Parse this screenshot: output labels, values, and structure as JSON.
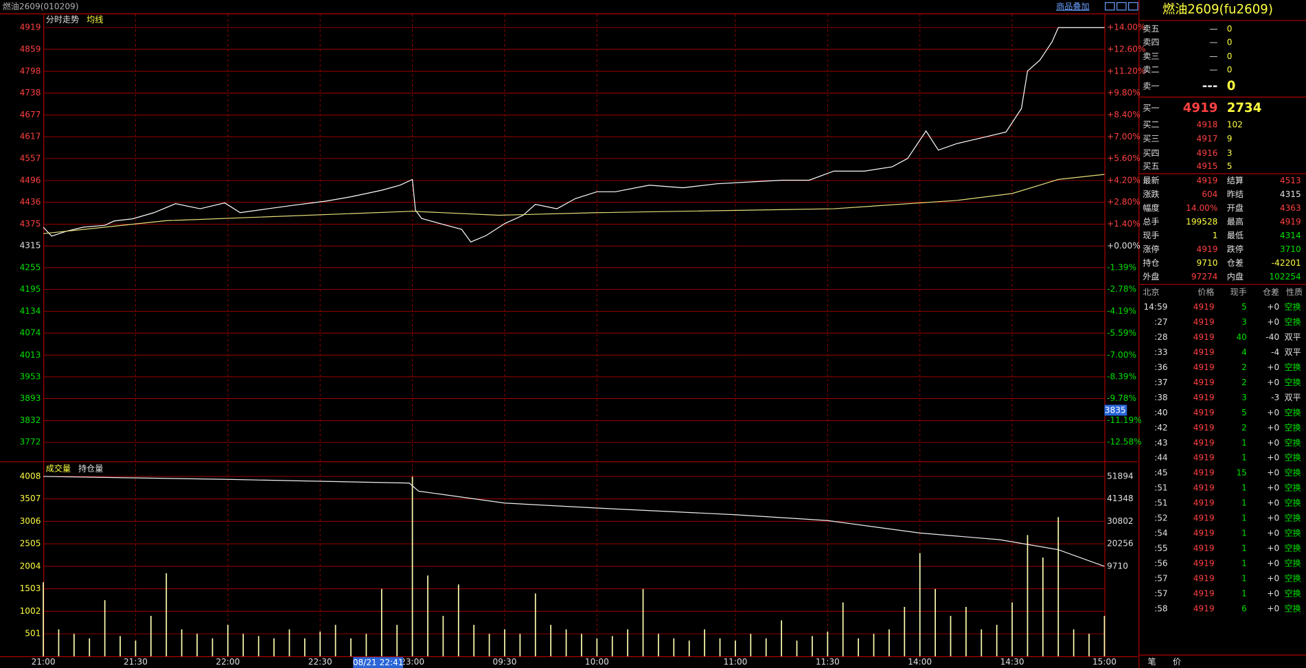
{
  "header": {
    "title": "燃油2609(010209)",
    "overlay": "商品叠加"
  },
  "chart_data": [
    {
      "type": "line",
      "title": "分时走势",
      "cursor_label": "3835",
      "xlim": [
        0,
        345
      ],
      "ylim": [
        3719,
        4956
      ],
      "y2lim": [
        -13.81,
        14.86
      ],
      "yticks": [
        4919,
        4859,
        4798,
        4738,
        4677,
        4617,
        4557,
        4496,
        4436,
        4375,
        4315,
        4255,
        4195,
        4134,
        4074,
        4013,
        3953,
        3893,
        3832,
        3772
      ],
      "y2ticks": [
        {
          "value": 14,
          "label": "+14.00%"
        },
        {
          "value": 12.6,
          "label": "+12.60%"
        },
        {
          "value": 11.2,
          "label": "+11.20%"
        },
        {
          "value": 9.8,
          "label": "+9.80%"
        },
        {
          "value": 8.4,
          "label": "+8.40%"
        },
        {
          "value": 7,
          "label": "+7.00%"
        },
        {
          "value": 5.6,
          "label": "+5.60%"
        },
        {
          "value": 4.2,
          "label": "+4.20%"
        },
        {
          "value": 2.8,
          "label": "+2.80%"
        },
        {
          "value": 1.4,
          "label": "+1.40%"
        },
        {
          "value": 0,
          "label": "+0.00%"
        },
        {
          "value": -1.39,
          "label": "-1.39%"
        },
        {
          "value": -2.78,
          "label": "-2.78%"
        },
        {
          "value": -4.19,
          "label": "-4.19%"
        },
        {
          "value": -5.59,
          "label": "-5.59%"
        },
        {
          "value": -7,
          "label": "-7.00%"
        },
        {
          "value": -8.39,
          "label": "-8.39%"
        },
        {
          "value": -9.78,
          "label": "-9.78%"
        },
        {
          "value": -11.19,
          "label": "-11.19%"
        },
        {
          "value": -12.58,
          "label": "-12.58%"
        }
      ],
      "series": [
        {
          "color": "#ffffff",
          "x": [
            0,
            2.7,
            7.6,
            13,
            20,
            23,
            29,
            36,
            43,
            51,
            59,
            64,
            73,
            81,
            92,
            100,
            110,
            116,
            120,
            121,
            123,
            129,
            136,
            139,
            144,
            150,
            156,
            160,
            167,
            173,
            180,
            186,
            197,
            208,
            219,
            230,
            240,
            249,
            257,
            267,
            276,
            281,
            287,
            291,
            297,
            305,
            313,
            318,
            320,
            324,
            328,
            330,
            345
          ],
          "values": [
            4367,
            4342,
            4356,
            4367,
            4372,
            4384,
            4390,
            4407,
            4432,
            4418,
            4434,
            4407,
            4418,
            4427,
            4439,
            4451,
            4469,
            4483,
            4499,
            4414,
            4391,
            4377,
            4361,
            4326,
            4344,
            4377,
            4400,
            4430,
            4418,
            4446,
            4465,
            4465,
            4483,
            4476,
            4487,
            4492,
            4497,
            4497,
            4522,
            4522,
            4534,
            4557,
            4633,
            4580,
            4598,
            4614,
            4630,
            4695,
            4799,
            4829,
            4880,
            4919,
            4919
          ]
        },
        {
          "name": "均线",
          "color": "#e8e07a",
          "x": [
            0,
            40,
            120,
            148,
            180,
            257,
            297,
            315,
            330,
            345
          ],
          "values": [
            4349,
            4385,
            4411,
            4400,
            4407,
            4418,
            4441,
            4460,
            4499,
            4513
          ]
        }
      ]
    },
    {
      "type": "bar",
      "cursor_time": "08/21 22:41",
      "xlim": [
        0,
        345
      ],
      "ylim": [
        0,
        4285
      ],
      "y2lim": [
        -32474,
        57753
      ],
      "xticks": [
        {
          "value": 0,
          "label": "21:00"
        },
        {
          "value": 30,
          "label": "21:30"
        },
        {
          "value": 60,
          "label": "22:00"
        },
        {
          "value": 90,
          "label": "22:30"
        },
        {
          "value": 120,
          "label": "23:00"
        },
        {
          "value": 150,
          "label": "09:30"
        },
        {
          "value": 180,
          "label": "10:00"
        },
        {
          "value": 225,
          "label": "11:00"
        },
        {
          "value": 255,
          "label": "11:30"
        },
        {
          "value": 285,
          "label": "14:00"
        },
        {
          "value": 315,
          "label": "14:30"
        },
        {
          "value": 345,
          "label": "15:00"
        }
      ],
      "yticks": [
        4008,
        3507,
        3006,
        2505,
        2004,
        1503,
        1002,
        501
      ],
      "y2ticks": [
        51894,
        41348,
        30802,
        20256,
        9710
      ],
      "series": [
        {
          "name": "成交量",
          "color": "#ffffb0",
          "x": [
            0,
            5,
            10,
            15,
            20,
            25,
            30,
            35,
            40,
            45,
            50,
            55,
            60,
            65,
            70,
            75,
            80,
            85,
            90,
            95,
            100,
            105,
            110,
            115,
            120,
            125,
            130,
            135,
            140,
            145,
            150,
            155,
            160,
            165,
            170,
            175,
            180,
            185,
            190,
            195,
            200,
            205,
            210,
            215,
            220,
            225,
            230,
            235,
            240,
            245,
            250,
            255,
            260,
            265,
            270,
            275,
            280,
            285,
            290,
            295,
            300,
            305,
            310,
            315,
            320,
            325,
            330,
            335,
            340,
            345
          ],
          "values": [
            1650,
            600,
            500,
            400,
            1250,
            450,
            350,
            900,
            1850,
            600,
            500,
            400,
            700,
            500,
            450,
            400,
            600,
            400,
            550,
            700,
            400,
            500,
            1500,
            700,
            4000,
            1800,
            900,
            1600,
            700,
            500,
            600,
            500,
            1400,
            700,
            600,
            500,
            400,
            450,
            600,
            1500,
            500,
            400,
            350,
            600,
            400,
            350,
            500,
            400,
            800,
            350,
            450,
            550,
            1200,
            400,
            500,
            600,
            1100,
            2300,
            1500,
            900,
            1100,
            600,
            700,
            1200,
            2700,
            2200,
            3100,
            600,
            500,
            900
          ]
        },
        {
          "name": "持仓量",
          "type": "line",
          "axis": "y2",
          "color": "#f0f0f0",
          "x": [
            0,
            60,
            119,
            122,
            150,
            180,
            225,
            255,
            285,
            311,
            330,
            345
          ],
          "values": [
            51894,
            50500,
            48769,
            45000,
            39395,
            37052,
            33927,
            31193,
            25334,
            22209,
            17522,
            9710
          ]
        }
      ]
    }
  ],
  "quote": {
    "title": "燃油2609(fu2609)",
    "asks": [
      [
        "卖五",
        "—",
        "0"
      ],
      [
        "卖四",
        "—",
        "0"
      ],
      [
        "卖三",
        "—",
        "0"
      ],
      [
        "卖二",
        "—",
        "0"
      ],
      [
        "卖一",
        "---",
        "0"
      ]
    ],
    "bids": [
      [
        "买一",
        "4919",
        "2734"
      ],
      [
        "买二",
        "4918",
        "102"
      ],
      [
        "买三",
        "4917",
        "9"
      ],
      [
        "买四",
        "4916",
        "3"
      ],
      [
        "买五",
        "4915",
        "5"
      ]
    ],
    "stats": [
      [
        "最新",
        "4919",
        "结算",
        "4513"
      ],
      [
        "涨跌",
        "604",
        "昨结",
        "4315"
      ],
      [
        "幅度",
        "14.00%",
        "开盘",
        "4363"
      ],
      [
        "总手",
        "199528",
        "最高",
        "4919"
      ],
      [
        "现手",
        "1",
        "最低",
        "4314"
      ],
      [
        "涨停",
        "4919",
        "跌停",
        "3710"
      ],
      [
        "持仓",
        "9710",
        "仓差",
        "-42201"
      ],
      [
        "外盘",
        "97274",
        "内盘",
        "102254"
      ]
    ],
    "trades": {
      "columns": [
        "北京",
        "价格",
        "现手",
        "仓差",
        "性质"
      ],
      "rows": [
        [
          "14:59",
          "4919",
          "5",
          "+0",
          "空换"
        ],
        [
          ":27",
          "4919",
          "3",
          "+0",
          "空换"
        ],
        [
          ":28",
          "4919",
          "40",
          "-40",
          "双平"
        ],
        [
          ":33",
          "4919",
          "4",
          "-4",
          "双平"
        ],
        [
          ":36",
          "4919",
          "2",
          "+0",
          "空换"
        ],
        [
          ":37",
          "4919",
          "2",
          "+0",
          "空换"
        ],
        [
          ":38",
          "4919",
          "3",
          "-3",
          "双平"
        ],
        [
          ":40",
          "4919",
          "5",
          "+0",
          "空换"
        ],
        [
          ":42",
          "4919",
          "2",
          "+0",
          "空换"
        ],
        [
          ":43",
          "4919",
          "1",
          "+0",
          "空换"
        ],
        [
          ":44",
          "4919",
          "1",
          "+0",
          "空换"
        ],
        [
          ":45",
          "4919",
          "15",
          "+0",
          "空换"
        ],
        [
          ":51",
          "4919",
          "1",
          "+0",
          "空换"
        ],
        [
          ":51",
          "4919",
          "1",
          "+0",
          "空换"
        ],
        [
          ":52",
          "4919",
          "1",
          "+0",
          "空换"
        ],
        [
          ":54",
          "4919",
          "1",
          "+0",
          "空换"
        ],
        [
          ":55",
          "4919",
          "1",
          "+0",
          "空换"
        ],
        [
          ":56",
          "4919",
          "1",
          "+0",
          "空换"
        ],
        [
          ":57",
          "4919",
          "1",
          "+0",
          "空换"
        ],
        [
          ":57",
          "4919",
          "1",
          "+0",
          "空换"
        ],
        [
          ":58",
          "4919",
          "6",
          "+0",
          "空换"
        ]
      ]
    },
    "tabs": [
      "笔",
      "价"
    ]
  }
}
